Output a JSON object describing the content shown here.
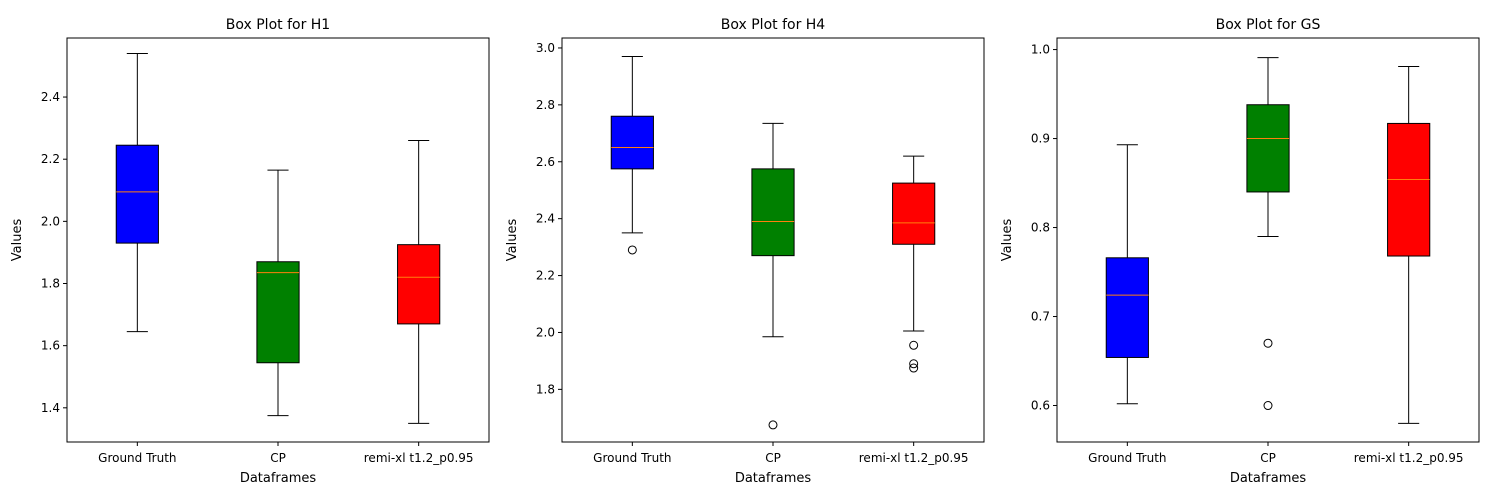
{
  "chart_data": [
    {
      "type": "box",
      "title": "Box Plot for H1",
      "xlabel": "Dataframes",
      "ylabel": "Values",
      "ylim": [
        1.29,
        2.59
      ],
      "yticks": [
        1.4,
        1.6,
        1.8,
        2.0,
        2.2,
        2.4
      ],
      "categories": [
        "Ground Truth",
        "CP",
        "remi-xl t1.2_p0.95"
      ],
      "colors": [
        "#0000ff",
        "#008000",
        "#ff0000"
      ],
      "median_color": "#ff7f0e",
      "boxes": [
        {
          "whisker_low": 1.645,
          "q1": 1.93,
          "median": 2.095,
          "q3": 2.245,
          "whisker_high": 2.54,
          "fliers": []
        },
        {
          "whisker_low": 1.375,
          "q1": 1.545,
          "median": 1.835,
          "q3": 1.87,
          "whisker_high": 2.165,
          "fliers": []
        },
        {
          "whisker_low": 1.35,
          "q1": 1.67,
          "median": 1.82,
          "q3": 1.925,
          "whisker_high": 2.26,
          "fliers": []
        }
      ]
    },
    {
      "type": "box",
      "title": "Box Plot for H4",
      "xlabel": "Dataframes",
      "ylabel": "Values",
      "ylim": [
        1.615,
        3.035
      ],
      "yticks": [
        1.8,
        2.0,
        2.2,
        2.4,
        2.6,
        2.8,
        3.0
      ],
      "categories": [
        "Ground Truth",
        "CP",
        "remi-xl t1.2_p0.95"
      ],
      "colors": [
        "#0000ff",
        "#008000",
        "#ff0000"
      ],
      "median_color": "#ff7f0e",
      "boxes": [
        {
          "whisker_low": 2.35,
          "q1": 2.575,
          "median": 2.65,
          "q3": 2.76,
          "whisker_high": 2.97,
          "fliers": [
            2.29
          ]
        },
        {
          "whisker_low": 1.985,
          "q1": 2.27,
          "median": 2.39,
          "q3": 2.575,
          "whisker_high": 2.735,
          "fliers": [
            1.675
          ]
        },
        {
          "whisker_low": 2.005,
          "q1": 2.31,
          "median": 2.385,
          "q3": 2.525,
          "whisker_high": 2.62,
          "fliers": [
            1.955,
            1.89,
            1.875
          ]
        }
      ]
    },
    {
      "type": "box",
      "title": "Box Plot for GS",
      "xlabel": "Dataframes",
      "ylabel": "Values",
      "ylim": [
        0.559,
        1.013
      ],
      "yticks": [
        0.6,
        0.7,
        0.8,
        0.9,
        1.0
      ],
      "categories": [
        "Ground Truth",
        "CP",
        "remi-xl t1.2_p0.95"
      ],
      "colors": [
        "#0000ff",
        "#008000",
        "#ff0000"
      ],
      "median_color": "#ff7f0e",
      "boxes": [
        {
          "whisker_low": 0.602,
          "q1": 0.654,
          "median": 0.724,
          "q3": 0.766,
          "whisker_high": 0.893,
          "fliers": []
        },
        {
          "whisker_low": 0.79,
          "q1": 0.84,
          "median": 0.9,
          "q3": 0.938,
          "whisker_high": 0.991,
          "fliers": [
            0.67,
            0.6
          ]
        },
        {
          "whisker_low": 0.58,
          "q1": 0.768,
          "median": 0.854,
          "q3": 0.917,
          "whisker_high": 0.981,
          "fliers": []
        }
      ]
    }
  ]
}
